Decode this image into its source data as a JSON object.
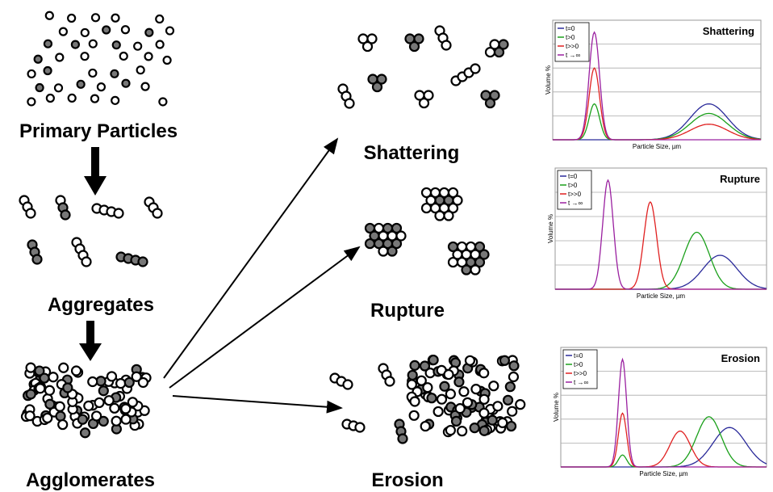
{
  "stages": [
    "Primary Particles",
    "Aggregates",
    "Agglomerates"
  ],
  "outcomes": [
    "Shattering",
    "Rupture",
    "Erosion"
  ],
  "plots": [
    {
      "title": "Shattering",
      "legend": [
        "t=0",
        "t>0",
        "t>>0",
        "t →∞"
      ],
      "y_label": "Volume %",
      "x_label": "Particle Size, µm"
    },
    {
      "title": "Rupture",
      "legend": [
        "t=0",
        "t>0",
        "t>>0",
        "t →∞"
      ],
      "y_label": "Volume %",
      "x_label": "Particle Size, µm"
    },
    {
      "title": "Erosion",
      "legend": [
        "t=0",
        "t>0",
        "t>>0",
        "t →∞"
      ],
      "y_label": "Volume %",
      "x_label": "Particle Size, µm"
    }
  ]
}
